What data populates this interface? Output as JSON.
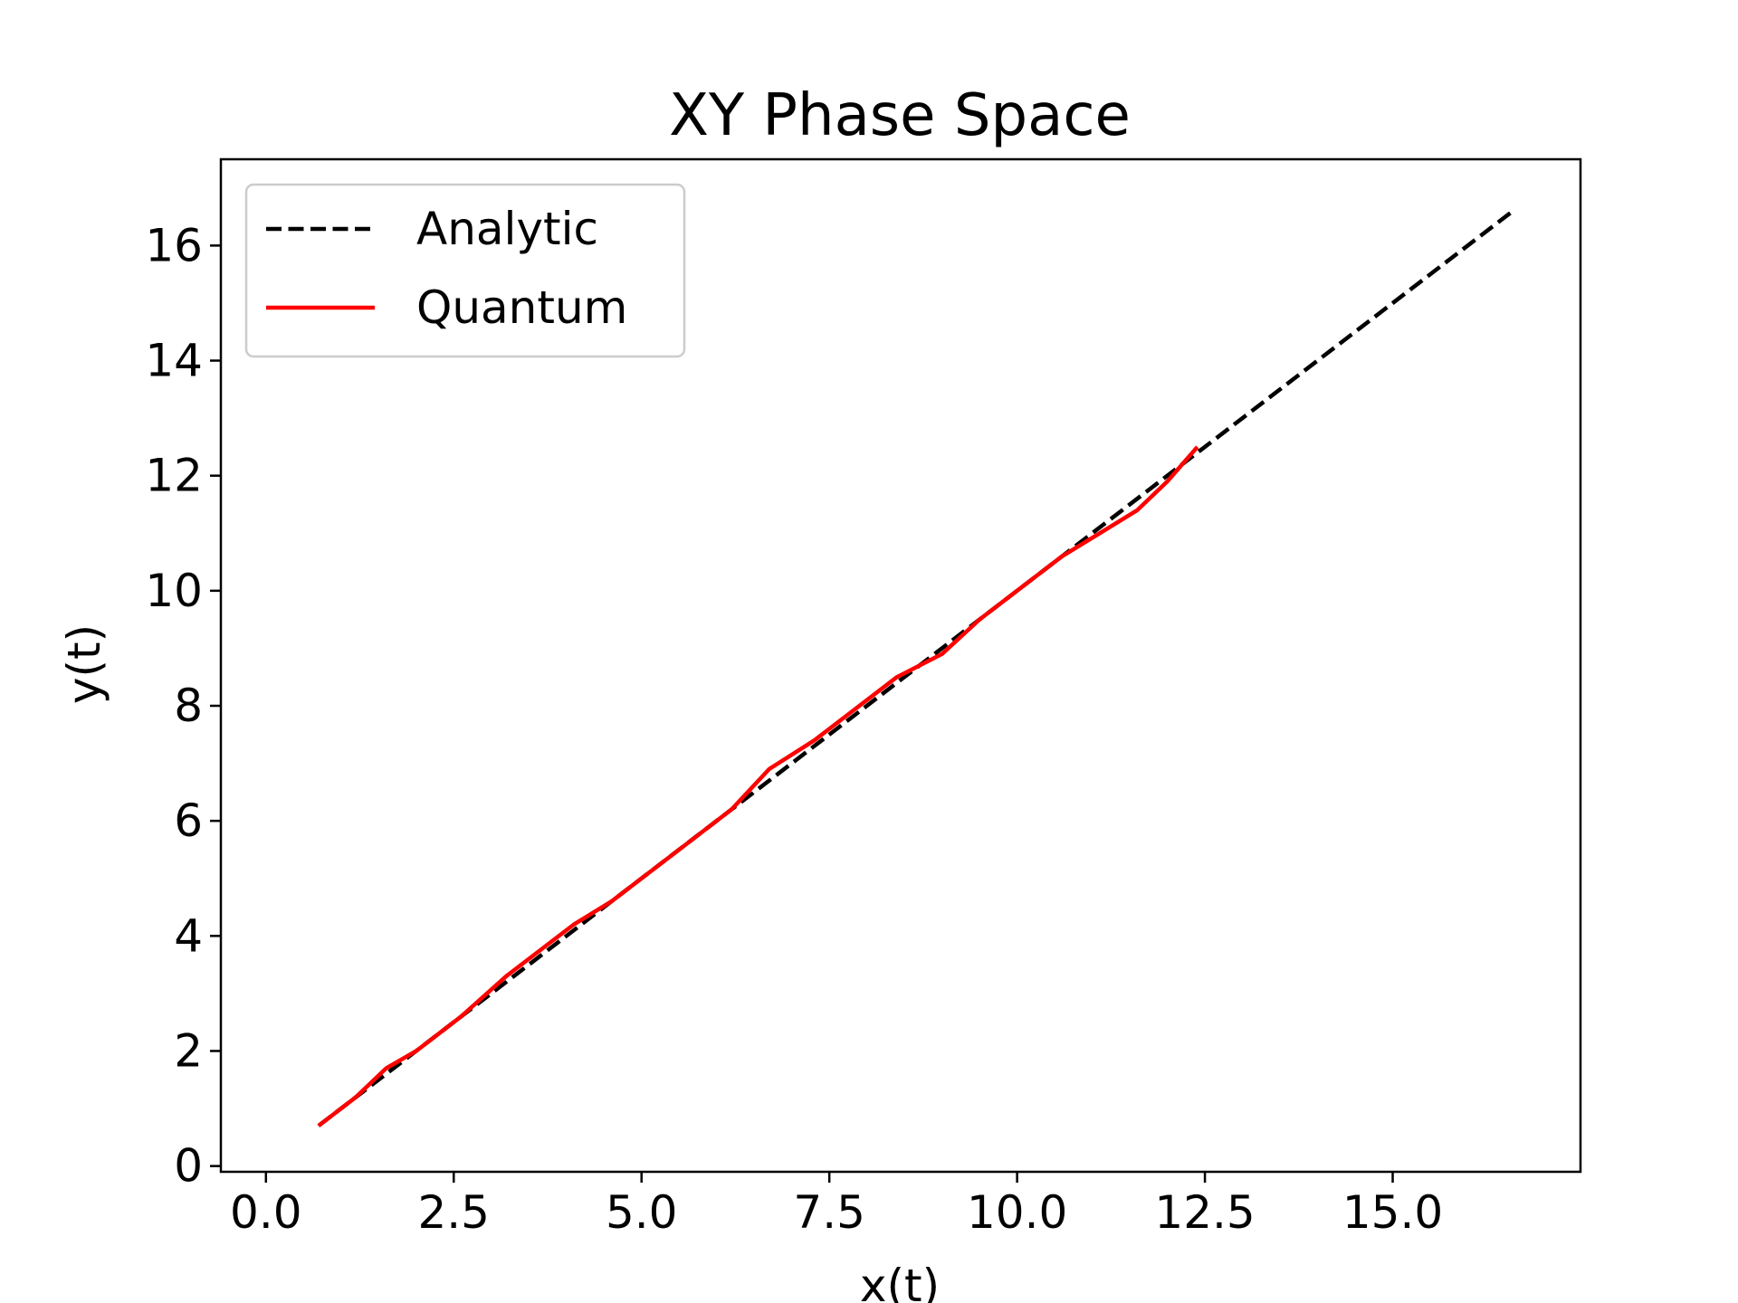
{
  "chart_data": {
    "type": "line",
    "title": "XY Phase Space",
    "xlabel": "x(t)",
    "ylabel": "y(t)",
    "xlim": [
      -0.6,
      17.5
    ],
    "ylim": [
      -0.1,
      17.5
    ],
    "xticks": [
      "0.0",
      "2.5",
      "5.0",
      "7.5",
      "10.0",
      "12.5",
      "15.0"
    ],
    "yticks": [
      "0",
      "2",
      "4",
      "6",
      "8",
      "10",
      "12",
      "14",
      "16"
    ],
    "grid": false,
    "legend_position": "upper-left",
    "series": [
      {
        "name": "Analytic",
        "style": "dashed",
        "color": "#000000",
        "x": [
          0.7,
          16.6
        ],
        "y": [
          0.7,
          16.6
        ]
      },
      {
        "name": "Quantum",
        "style": "solid",
        "color": "#ff0000",
        "x": [
          0.7,
          1.2,
          1.6,
          2.0,
          2.6,
          3.2,
          3.6,
          4.1,
          4.6,
          5.1,
          5.6,
          6.2,
          6.7,
          7.3,
          7.8,
          8.4,
          9.0,
          9.5,
          10.0,
          10.6,
          11.1,
          11.6,
          12.0,
          12.4
        ],
        "y": [
          0.7,
          1.2,
          1.7,
          2.0,
          2.6,
          3.3,
          3.7,
          4.2,
          4.6,
          5.1,
          5.6,
          6.2,
          6.9,
          7.4,
          7.9,
          8.5,
          8.9,
          9.5,
          10.0,
          10.6,
          11.0,
          11.4,
          11.9,
          12.5
        ]
      }
    ]
  }
}
